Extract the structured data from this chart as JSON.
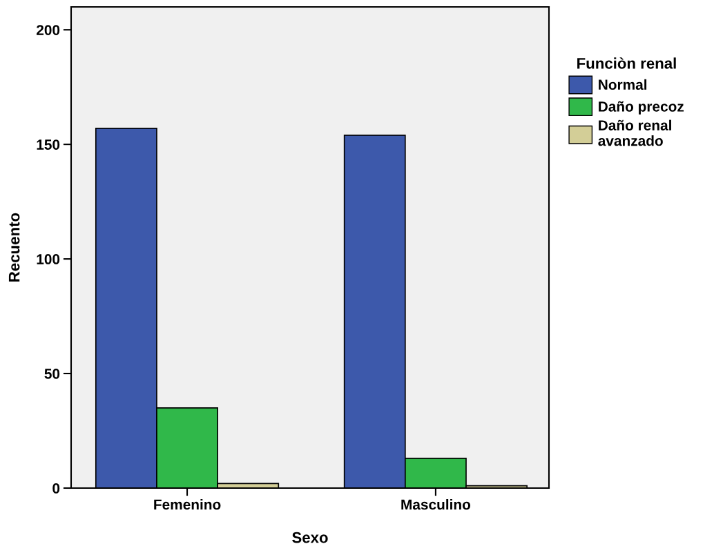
{
  "chart_data": {
    "type": "bar",
    "xlabel": "Sexo",
    "ylabel": "Recuento",
    "legend_title": "Funciòn renal",
    "categories": [
      "Femenino",
      "Masculino"
    ],
    "series": [
      {
        "name": "Normal",
        "color": "#3d59ab",
        "values": [
          157,
          154
        ]
      },
      {
        "name": "Daño precoz",
        "color": "#30b84a",
        "values": [
          35,
          13
        ]
      },
      {
        "name": "Daño renal\navanzado",
        "color": "#d3ce97",
        "values": [
          2,
          1
        ]
      }
    ],
    "ylim": [
      0,
      210
    ],
    "yticks": [
      0,
      50,
      100,
      150,
      200
    ],
    "grid": false,
    "legend": "right"
  }
}
